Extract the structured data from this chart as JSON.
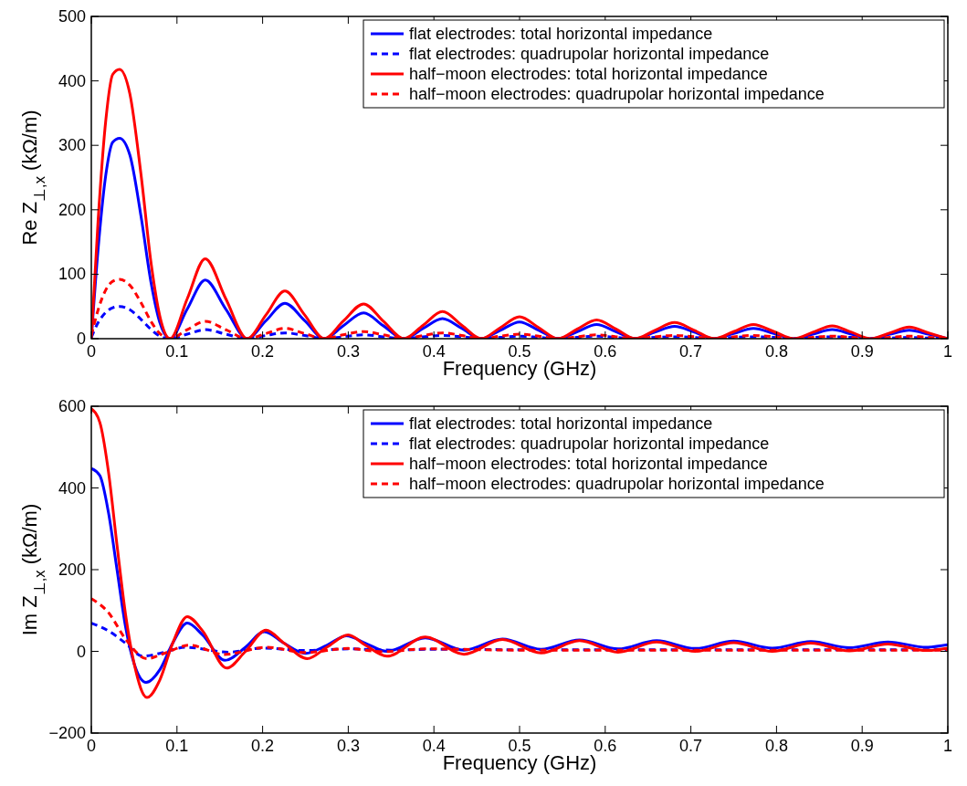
{
  "chart_data": [
    {
      "type": "line",
      "xlabel": "Frequency (GHz)",
      "ylabel": "Re Z$_{⊥,x}$ (kΩ/m)",
      "xlim": [
        0,
        1
      ],
      "xticks": [
        0,
        0.1,
        0.2,
        0.3,
        0.4,
        0.5,
        0.6,
        0.7,
        0.8,
        0.9,
        1
      ],
      "ylim": [
        0,
        500
      ],
      "yticks": [
        0,
        100,
        200,
        300,
        400,
        500
      ],
      "legend": "top right",
      "grid": false,
      "x": [
        0,
        0.008,
        0.017,
        0.025,
        0.033,
        0.045,
        0.058,
        0.07,
        0.08,
        0.092,
        0.112,
        0.133,
        0.157,
        0.182,
        0.204,
        0.226,
        0.249,
        0.272,
        0.294,
        0.318,
        0.341,
        0.365,
        0.3875,
        0.41,
        0.4325,
        0.455,
        0.4775,
        0.5,
        0.5225,
        0.545,
        0.5675,
        0.59,
        0.6125,
        0.635,
        0.658,
        0.681,
        0.704,
        0.727,
        0.75,
        0.773,
        0.797,
        0.82,
        0.8425,
        0.865,
        0.8875,
        0.91,
        0.9325,
        0.955,
        0.9775,
        1
      ],
      "series": [
        {
          "name": "flat electrodes: total horizontal impedance",
          "color": "#0000ff",
          "line_style": "solid",
          "values": [
            0,
            140,
            255,
            305,
            311,
            285,
            190,
            85,
            25,
            0,
            46,
            91,
            46,
            0,
            28,
            55,
            28,
            0,
            20,
            40,
            20,
            0,
            16,
            31,
            16,
            0,
            13,
            26,
            13,
            0,
            11,
            22,
            11,
            0,
            10,
            19,
            10,
            0,
            8,
            16,
            8,
            0,
            7,
            14,
            7,
            0,
            7,
            13,
            7,
            0
          ]
        },
        {
          "name": "flat electrodes: quadrupolar horizontal impedance",
          "color": "#0000ff",
          "line_style": "dashed",
          "values": [
            2,
            25,
            41,
            48,
            50,
            45,
            30,
            14,
            4,
            0,
            7,
            14,
            7,
            0,
            5,
            9,
            5,
            0,
            3,
            6,
            3,
            0,
            3,
            5,
            3,
            0,
            2,
            4,
            2,
            0,
            2,
            4,
            2,
            0,
            2,
            3,
            2,
            0,
            2,
            3,
            2,
            0,
            2,
            3,
            2,
            0,
            1,
            2,
            1,
            0
          ]
        },
        {
          "name": "half−moon electrodes: total horizontal impedance",
          "color": "#ff0000",
          "line_style": "solid",
          "values": [
            0,
            185,
            340,
            410,
            418,
            380,
            255,
            115,
            35,
            0,
            62,
            124,
            62,
            0,
            37,
            74,
            37,
            0,
            27,
            54,
            27,
            0,
            21,
            42,
            21,
            0,
            17,
            34,
            17,
            0,
            15,
            29,
            15,
            0,
            13,
            25,
            13,
            0,
            11,
            22,
            11,
            0,
            10,
            20,
            10,
            0,
            9,
            18,
            9,
            0
          ]
        },
        {
          "name": "half−moon electrodes: quadrupolar horizontal impedance",
          "color": "#ff0000",
          "line_style": "dashed",
          "values": [
            5,
            45,
            76,
            89,
            92,
            83,
            56,
            26,
            8,
            0,
            14,
            27,
            14,
            0,
            8,
            16,
            8,
            0,
            6,
            11,
            6,
            0,
            5,
            9,
            5,
            0,
            4,
            7,
            4,
            0,
            3,
            6,
            3,
            0,
            3,
            5,
            3,
            0,
            3,
            5,
            3,
            0,
            2,
            4,
            2,
            0,
            2,
            4,
            2,
            0
          ]
        }
      ]
    },
    {
      "type": "line",
      "xlabel": "Frequency (GHz)",
      "ylabel": "Im Z$_{⊥,x}$ (kΩ/m)",
      "xlim": [
        0,
        1
      ],
      "xticks": [
        0,
        0.1,
        0.2,
        0.3,
        0.4,
        0.5,
        0.6,
        0.7,
        0.8,
        0.9,
        1
      ],
      "ylim": [
        -200,
        600
      ],
      "yticks": [
        {
          "value": -200,
          "label": "−200"
        },
        0,
        200,
        400,
        600
      ],
      "legend": "top right",
      "grid": false,
      "series": [
        {
          "name": "flat electrodes: total horizontal impedance",
          "color": "#0000ff",
          "line_style": "solid",
          "x": [
            0,
            0.01,
            0.02,
            0.03,
            0.04,
            0.05,
            0.064,
            0.08,
            0.095,
            0.112,
            0.13,
            0.156,
            0.18,
            0.202,
            0.225,
            0.25,
            0.275,
            0.298,
            0.32,
            0.345,
            0.39,
            0.435,
            0.48,
            0.525,
            0.57,
            0.615,
            0.66,
            0.705,
            0.75,
            0.795,
            0.84,
            0.885,
            0.93,
            0.975,
            1
          ],
          "values": [
            448,
            430,
            340,
            200,
            60,
            -30,
            -76,
            -45,
            20,
            69,
            40,
            -22,
            10,
            48,
            20,
            -5,
            15,
            38,
            20,
            0,
            33,
            3,
            30,
            5,
            28,
            6,
            26,
            7,
            25,
            8,
            24,
            9,
            23,
            10,
            16
          ]
        },
        {
          "name": "flat electrodes: quadrupolar horizontal impedance",
          "color": "#0000ff",
          "line_style": "dashed",
          "x": [
            0,
            0.02,
            0.04,
            0.06,
            0.08,
            0.11,
            0.16,
            0.2,
            0.25,
            0.3,
            0.35,
            0.4,
            0.5,
            0.6,
            0.7,
            0.8,
            0.9,
            1
          ],
          "values": [
            69,
            50,
            20,
            -12,
            -5,
            10,
            -2,
            8,
            2,
            6,
            3,
            5,
            4,
            4,
            4,
            4,
            4,
            4
          ]
        },
        {
          "name": "half−moon electrodes: total horizontal impedance",
          "color": "#ff0000",
          "line_style": "solid",
          "x": [
            0,
            0.01,
            0.02,
            0.03,
            0.04,
            0.05,
            0.065,
            0.08,
            0.095,
            0.112,
            0.13,
            0.158,
            0.18,
            0.204,
            0.225,
            0.252,
            0.275,
            0.3,
            0.32,
            0.345,
            0.39,
            0.435,
            0.48,
            0.525,
            0.57,
            0.615,
            0.66,
            0.705,
            0.75,
            0.795,
            0.84,
            0.885,
            0.93,
            0.975,
            1
          ],
          "values": [
            594,
            560,
            440,
            260,
            90,
            -30,
            -113,
            -70,
            20,
            85,
            50,
            -41,
            0,
            52,
            20,
            -18,
            10,
            40,
            15,
            -12,
            35,
            -7,
            29,
            -4,
            26,
            -2,
            23,
            0,
            21,
            0,
            20,
            1,
            18,
            2,
            8
          ]
        },
        {
          "name": "half−moon electrodes: quadrupolar horizontal impedance",
          "color": "#ff0000",
          "line_style": "dashed",
          "x": [
            0,
            0.02,
            0.04,
            0.065,
            0.085,
            0.115,
            0.155,
            0.205,
            0.25,
            0.3,
            0.34,
            0.39,
            0.5,
            0.6,
            0.7,
            0.8,
            0.9,
            1
          ],
          "values": [
            129,
            95,
            30,
            -18,
            -5,
            15,
            -8,
            10,
            -3,
            7,
            -1,
            6,
            3,
            3,
            3,
            3,
            3,
            3
          ]
        }
      ]
    }
  ]
}
